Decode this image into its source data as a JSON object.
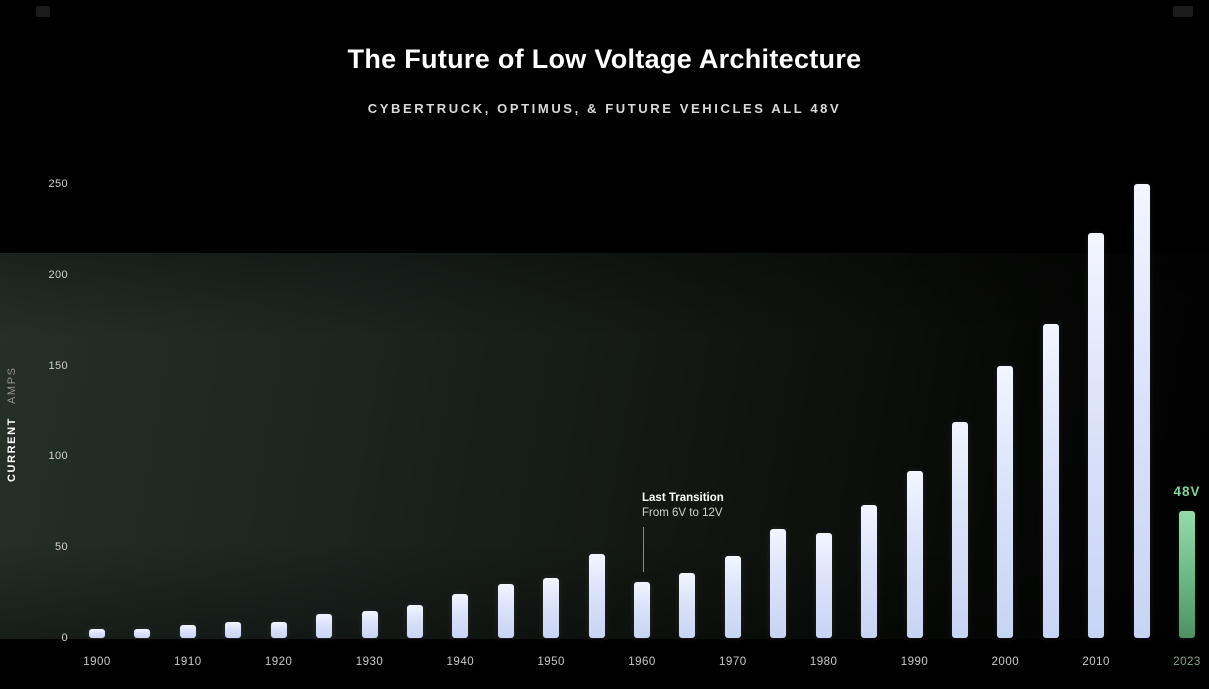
{
  "header": {
    "title": "The Future of Low Voltage Architecture",
    "subtitle": "CYBERTRUCK, OPTIMUS, & FUTURE VEHICLES ALL 48V"
  },
  "chart_data": {
    "type": "bar",
    "title": "The Future of Low Voltage Architecture",
    "subtitle": "CYBERTRUCK, OPTIMUS, & FUTURE VEHICLES ALL 48V",
    "ylabel_primary": "CURRENT",
    "ylabel_secondary": "AMPS",
    "xlabel": "",
    "ylim": [
      0,
      250
    ],
    "yticks": [
      0,
      50,
      100,
      150,
      200,
      250
    ],
    "grid": false,
    "legend": "none",
    "annotation": {
      "line1": "Last Transition",
      "line2": "From 6V to 12V",
      "target_year": 1960
    },
    "highlight_label": "48V",
    "colors": {
      "background": "#000000",
      "bar_top": "#f3f6ff",
      "bar_bottom": "#c7d4f3",
      "highlight_bar_top": "#96daab",
      "highlight_bar_bottom": "#4e9164",
      "highlight_text": "#7fd79a",
      "axis_text": "#c9c9c9"
    },
    "bars": [
      {
        "year": 1900,
        "value": 5,
        "tick_label": "1900"
      },
      {
        "year": 1905,
        "value": 5
      },
      {
        "year": 1910,
        "value": 7,
        "tick_label": "1910"
      },
      {
        "year": 1915,
        "value": 9
      },
      {
        "year": 1920,
        "value": 9,
        "tick_label": "1920"
      },
      {
        "year": 1925,
        "value": 13
      },
      {
        "year": 1930,
        "value": 15,
        "tick_label": "1930"
      },
      {
        "year": 1935,
        "value": 18
      },
      {
        "year": 1940,
        "value": 24,
        "tick_label": "1940"
      },
      {
        "year": 1945,
        "value": 30
      },
      {
        "year": 1950,
        "value": 33,
        "tick_label": "1950"
      },
      {
        "year": 1955,
        "value": 46
      },
      {
        "year": 1960,
        "value": 31,
        "tick_label": "1960"
      },
      {
        "year": 1965,
        "value": 36
      },
      {
        "year": 1970,
        "value": 45,
        "tick_label": "1970"
      },
      {
        "year": 1975,
        "value": 60
      },
      {
        "year": 1980,
        "value": 58,
        "tick_label": "1980"
      },
      {
        "year": 1985,
        "value": 73
      },
      {
        "year": 1990,
        "value": 92,
        "tick_label": "1990"
      },
      {
        "year": 1995,
        "value": 119
      },
      {
        "year": 2000,
        "value": 150,
        "tick_label": "2000"
      },
      {
        "year": 2005,
        "value": 173
      },
      {
        "year": 2010,
        "value": 223,
        "tick_label": "2010"
      },
      {
        "year": 2015,
        "value": 250
      },
      {
        "year": 2023,
        "value": 70,
        "tick_label": "2023",
        "highlight": true
      }
    ]
  }
}
